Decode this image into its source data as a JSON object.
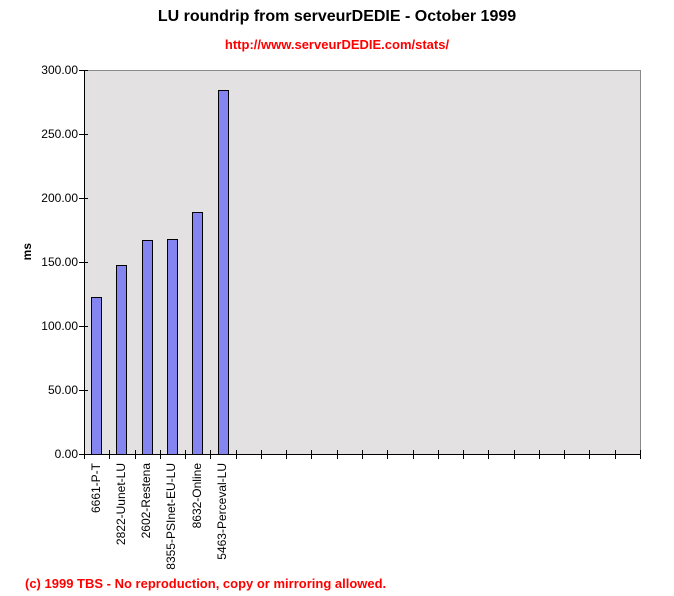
{
  "title": "LU roundrip from serveurDEDIE - October 1999",
  "subtitle": "http://www.serveurDEDIE.com/stats/",
  "footer": "(c) 1999 TBS - No reproduction, copy or mirroring allowed.",
  "colors": {
    "title_text": "#000000",
    "subtitle_red": "#ff0000",
    "footer_red": "#ff0000",
    "bar_fill": "#8585f2",
    "bar_border": "#000000",
    "plot_background": "#e3e1e1",
    "plot_border_gray": "#8a8a8a",
    "axis_black": "#000000"
  },
  "chart_data": {
    "type": "bar",
    "title": "LU roundrip from serveurDEDIE - October 1999",
    "subtitle": "http://www.serveurDEDIE.com/stats/",
    "categories": [
      "6661-P-T",
      "2822-Uunet-LU",
      "2602-Restena",
      "8355-PSInet-EU-LU",
      "8632-Online",
      "5463-Perceval-LU"
    ],
    "values": [
      123,
      148,
      167,
      168,
      189,
      284
    ],
    "xlabel": "",
    "ylabel": "ms",
    "ylim": [
      0,
      300
    ],
    "y_ticks": [
      0,
      50,
      100,
      150,
      200,
      250,
      300
    ],
    "y_tick_labels": [
      "0.00",
      "50.00",
      "100.00",
      "150.00",
      "200.00",
      "250.00",
      "300.00"
    ],
    "x_axis_slots": 22,
    "grid": false,
    "legend": false,
    "category_label_rotation_deg": 90,
    "annotations": [
      "(c) 1999 TBS - No reproduction, copy or mirroring allowed."
    ]
  }
}
